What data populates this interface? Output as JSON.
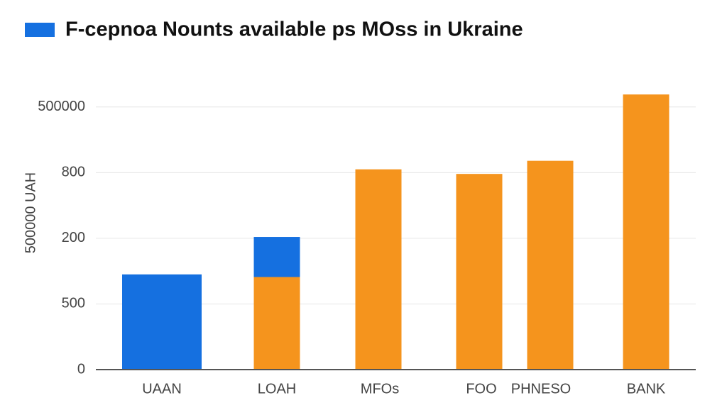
{
  "chart_data": {
    "type": "bar",
    "stacked": true,
    "title": "F-cepnoa Nounts available ps MOss in Ukraine",
    "y_label": "500000 UAH",
    "categories": [
      "UAAN",
      "LOAH",
      "MFOs",
      "FOO",
      "PHNESO",
      "BANK"
    ],
    "series": [
      {
        "color": "#f5941d",
        "values": [
          null,
          1.41,
          3.05,
          2.98,
          3.18,
          4.19
        ]
      },
      {
        "color": "#1570e0",
        "values": [
          1.45,
          0.61,
          null,
          null,
          null,
          null
        ]
      }
    ],
    "legend_color": "#1570e0",
    "ylim": [
      0,
      4.3
    ],
    "yticks": [
      0,
      {
        "value": 1,
        "label": "500"
      },
      {
        "value": 2,
        "label": "200"
      },
      {
        "value": 3,
        "label": "800"
      },
      {
        "value": 4,
        "label": "500000"
      }
    ],
    "grid": true
  }
}
